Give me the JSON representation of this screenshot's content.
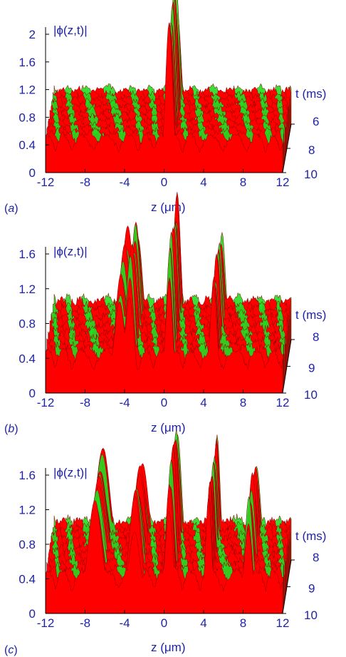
{
  "colors": {
    "text": "#1f23a8",
    "surface_red": "#ff0000",
    "surface_dark": "#8b0000",
    "underside_green": "#22dd22"
  },
  "chart_data": [
    {
      "type": "area",
      "panel_label": "(a)",
      "panel_letter": "a",
      "zlabel": "|ϕ(z,t)|",
      "xlabel": "z (μm)",
      "tlabel": "t (ms)",
      "x_ticks": [
        "-12",
        "-8",
        "-4",
        "0",
        "4",
        "8",
        "12"
      ],
      "y_ticks": [
        "0",
        "0.4",
        "0.8",
        "1.2",
        "1.6",
        "2"
      ],
      "t_ticks": [
        "6",
        "8",
        "10"
      ],
      "xlim": [
        -12,
        12
      ],
      "ylim": [
        0,
        2
      ],
      "tlim": [
        6,
        10
      ],
      "background_level": 0.55,
      "peaks": [
        {
          "z": 0.5,
          "height": 2.2,
          "width": 0.35
        }
      ]
    },
    {
      "type": "area",
      "panel_label": "(b)",
      "panel_letter": "b",
      "zlabel": "|ϕ(z,t)|",
      "xlabel": "z (μm)",
      "tlabel": "t (ms)",
      "x_ticks": [
        "-12",
        "-8",
        "-4",
        "0",
        "4",
        "8",
        "12"
      ],
      "y_ticks": [
        "0",
        "0.4",
        "0.8",
        "1.2",
        "1.6"
      ],
      "t_ticks": [
        "8",
        "9",
        "10"
      ],
      "xlim": [
        -12,
        12
      ],
      "ylim": [
        0,
        1.6
      ],
      "tlim": [
        8,
        10
      ],
      "background_level": 0.5,
      "peaks": [
        {
          "z": -4.5,
          "height": 1.35,
          "width": 0.55
        },
        {
          "z": -3.5,
          "height": 1.55,
          "width": 0.45
        },
        {
          "z": 0.5,
          "height": 1.75,
          "width": 0.35
        },
        {
          "z": 5.0,
          "height": 1.4,
          "width": 0.35
        }
      ]
    },
    {
      "type": "area",
      "panel_label": "(c)",
      "panel_letter": "c",
      "zlabel": "|ϕ(z,t)|",
      "xlabel": "z (μm)",
      "tlabel": "t (ms)",
      "x_ticks": [
        "-12",
        "-8",
        "-4",
        "0",
        "4",
        "8",
        "12"
      ],
      "y_ticks": [
        "0",
        "0.4",
        "0.8",
        "1.2",
        "1.6"
      ],
      "t_ticks": [
        "8",
        "9",
        "10"
      ],
      "xlim": [
        -12,
        12
      ],
      "ylim": [
        0,
        1.6
      ],
      "tlim": [
        8,
        10
      ],
      "background_level": 0.5,
      "peaks": [
        {
          "z": -7.0,
          "height": 1.35,
          "width": 0.7
        },
        {
          "z": -3.0,
          "height": 1.35,
          "width": 0.6
        },
        {
          "z": 0.5,
          "height": 1.65,
          "width": 0.4
        },
        {
          "z": 4.5,
          "height": 1.45,
          "width": 0.3
        },
        {
          "z": 8.5,
          "height": 1.35,
          "width": 0.4
        }
      ]
    }
  ]
}
